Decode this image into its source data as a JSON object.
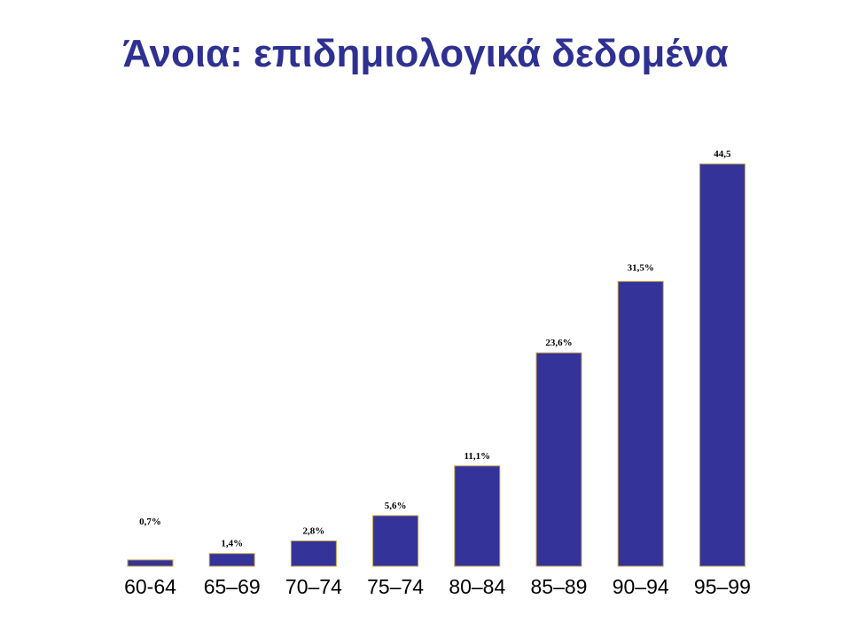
{
  "slide": {
    "title": "Άνοια: επιδημιολογικά δεδομένα"
  },
  "colors": {
    "title": "#2e3192",
    "bar_fill": "#333399",
    "bar_outline": "#c9a046"
  },
  "chart_data": {
    "type": "bar",
    "title": "Άνοια: επιδημιολογικά δεδομένα",
    "xlabel": "",
    "ylabel": "",
    "ylim": [
      0,
      44.5
    ],
    "grid": false,
    "legend": "none",
    "categories": [
      "60-64",
      "65–69",
      "70–74",
      "75–74",
      "80–84",
      "85–89",
      "90–94",
      "95–99"
    ],
    "values": [
      0.7,
      1.4,
      2.8,
      5.6,
      11.1,
      23.6,
      31.5,
      44.5
    ],
    "data_labels": [
      "0,7%",
      "1,4%",
      "2,8%",
      "5,6%",
      "11,1%",
      "23,6%",
      "31,5%",
      "44,5"
    ]
  }
}
